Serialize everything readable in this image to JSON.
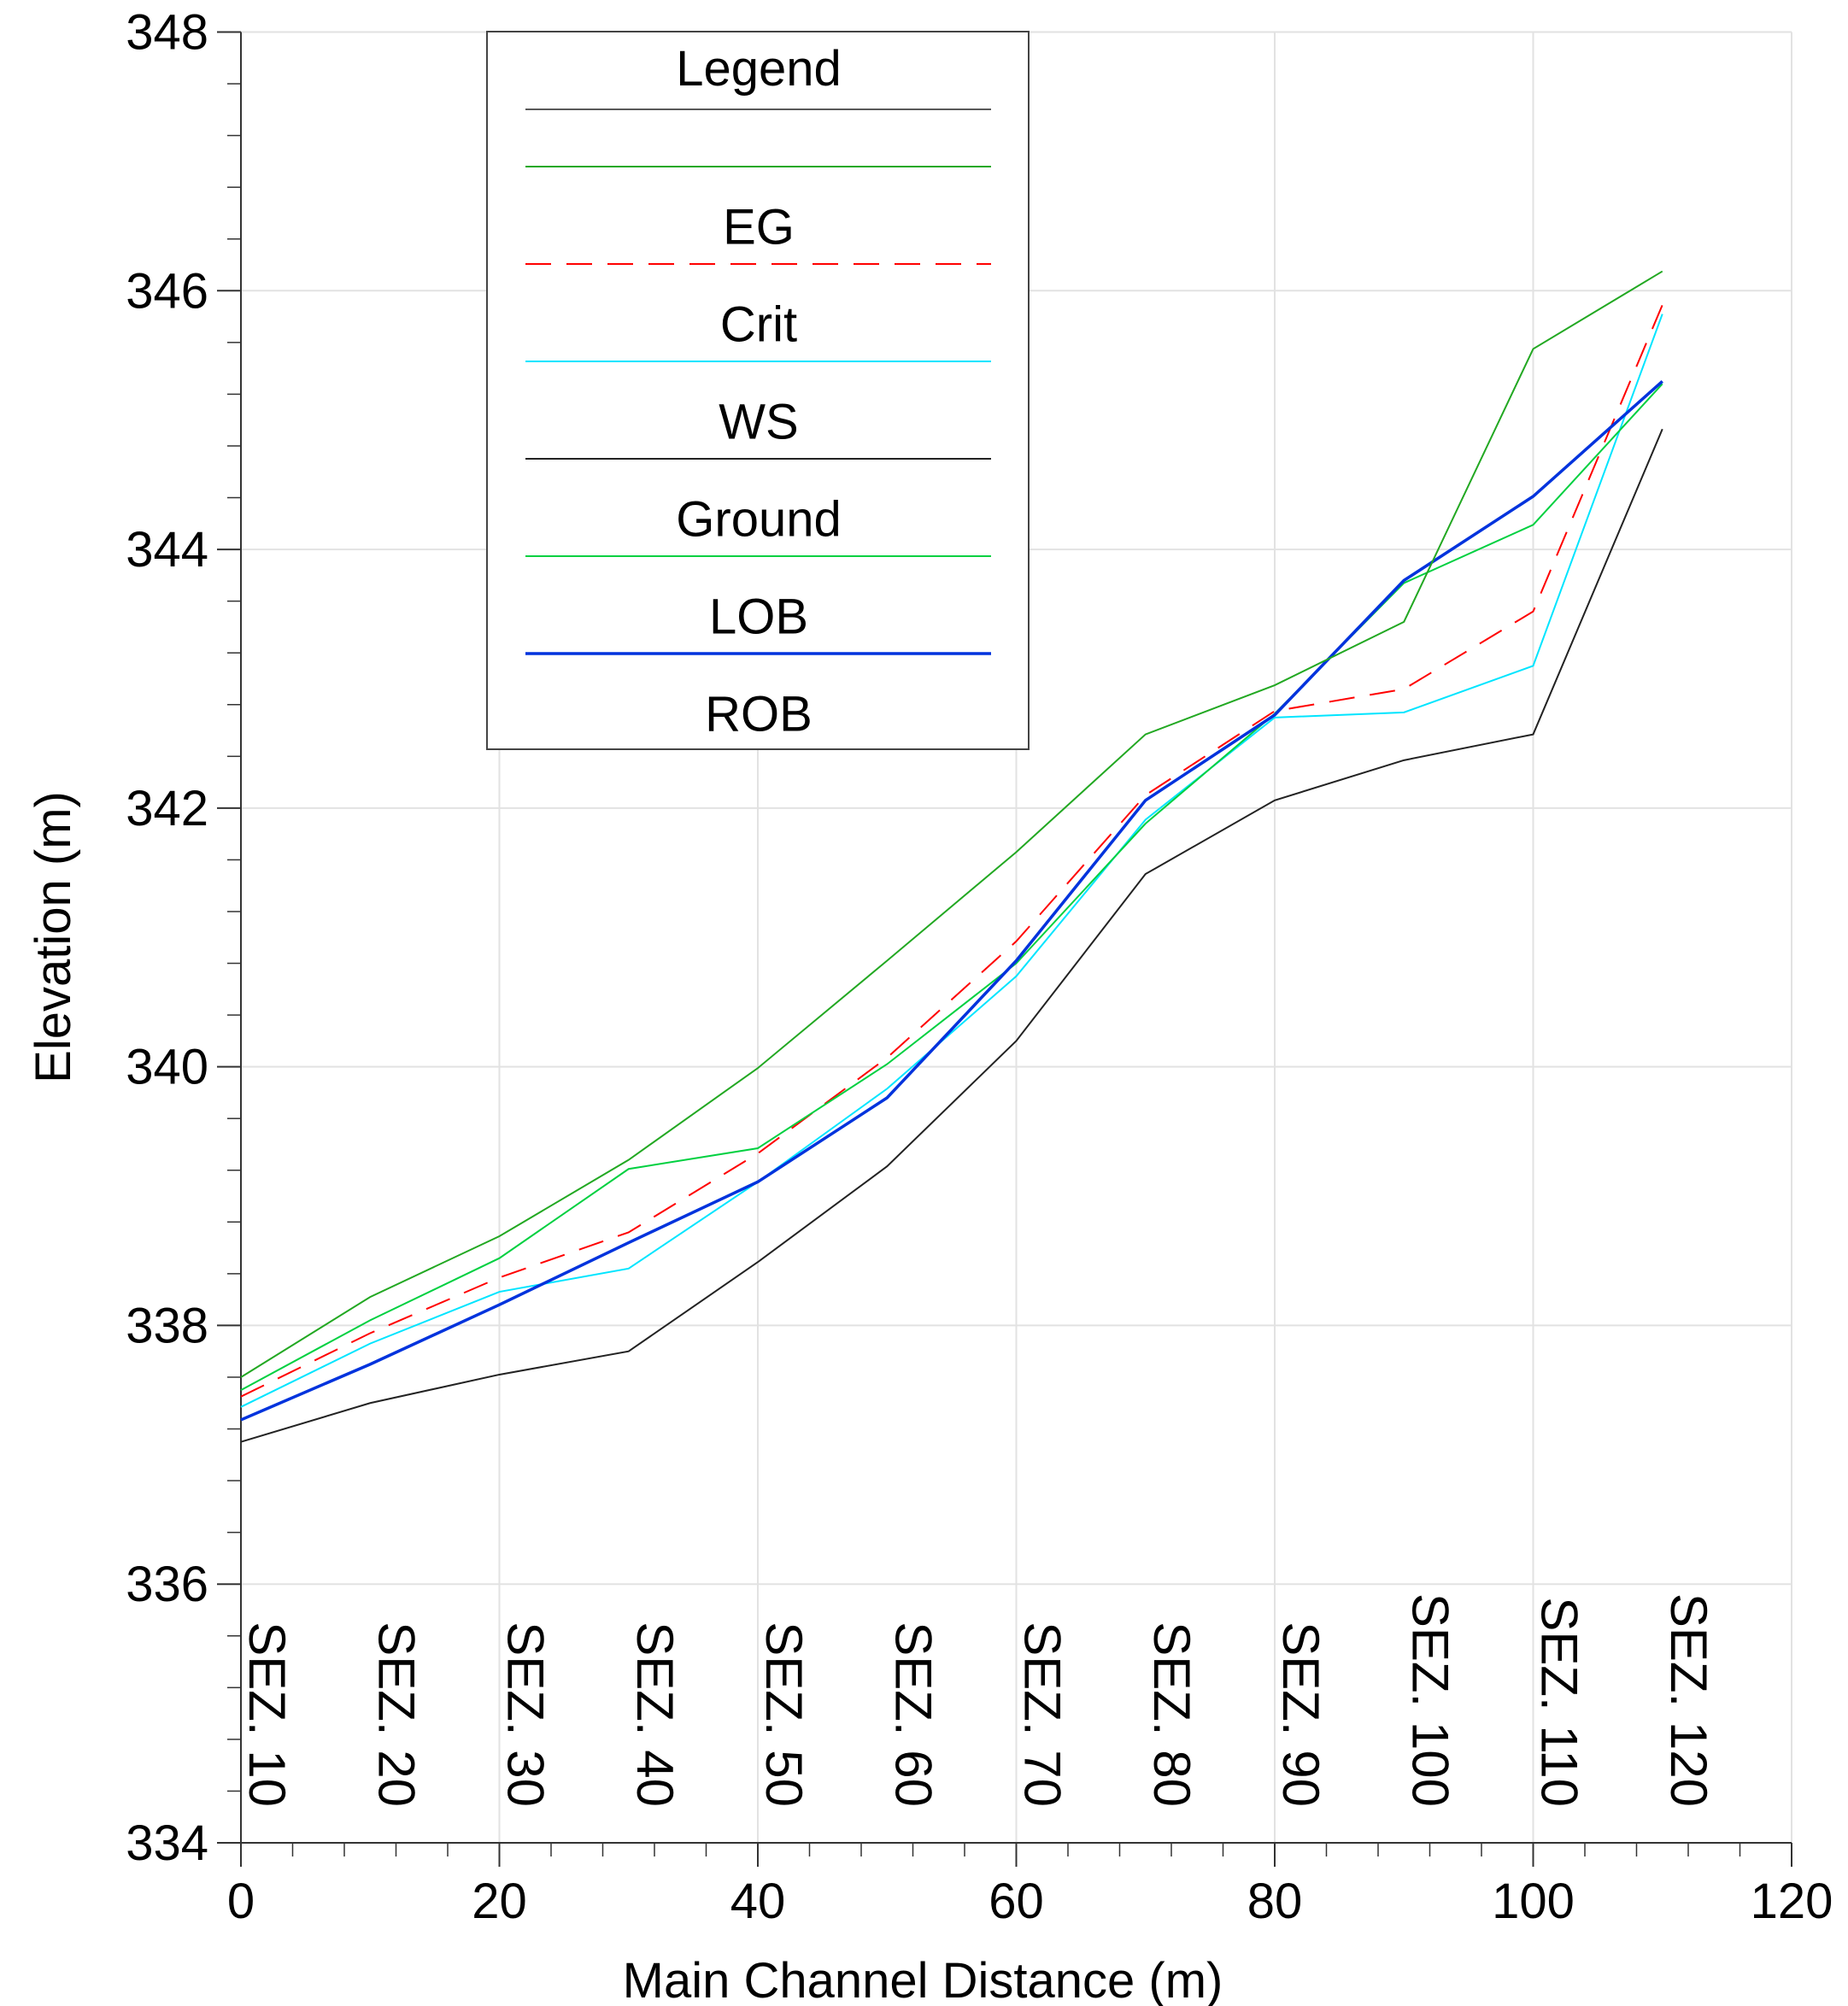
{
  "chart_data": {
    "type": "line",
    "xlabel": "Main Channel Distance (m)",
    "ylabel": "Elevation (m)",
    "legend_title": "Legend",
    "x": [
      0,
      10,
      20,
      30,
      40,
      50,
      60,
      70,
      80,
      90,
      100,
      110
    ],
    "section_labels": [
      "SEZ. 10",
      "SEZ. 20",
      "SEZ. 30",
      "SEZ. 40",
      "SEZ. 50",
      "SEZ. 60",
      "SEZ. 70",
      "SEZ. 80",
      "SEZ. 90",
      "SEZ. 100",
      "SEZ. 110",
      "SEZ. 120"
    ],
    "series": [
      {
        "name": "EG",
        "color": "#ff0000",
        "style": "dashed",
        "values": [
          337.45,
          337.94,
          338.37,
          338.72,
          339.33,
          340.07,
          340.97,
          342.1,
          342.75,
          342.92,
          343.52,
          345.89
        ]
      },
      {
        "name": "Crit",
        "color": "#00e5ff",
        "style": "solid",
        "values": [
          337.37,
          337.86,
          338.26,
          338.44,
          339.11,
          339.83,
          340.7,
          341.91,
          342.7,
          342.74,
          343.1,
          345.82
        ]
      },
      {
        "name": "WS",
        "color": "#222222",
        "style": "solid",
        "values": [
          337.1,
          337.4,
          337.62,
          337.8,
          338.49,
          339.23,
          340.2,
          341.49,
          342.06,
          342.37,
          342.57,
          344.93
        ]
      },
      {
        "name": "Ground",
        "color": "#00d040",
        "style": "solid",
        "values": [
          337.5,
          338.04,
          338.52,
          339.21,
          339.37,
          340.02,
          340.8,
          341.88,
          342.73,
          343.74,
          344.19,
          345.28
        ]
      },
      {
        "name": "LOB",
        "color": "#0033dd",
        "style": "solid",
        "values": [
          337.27,
          337.7,
          338.16,
          338.64,
          339.11,
          339.76,
          340.82,
          342.06,
          342.72,
          343.76,
          344.41,
          345.3
        ]
      },
      {
        "name": "ROB",
        "color": "#22a822",
        "style": "solid",
        "values": [
          337.6,
          338.22,
          338.69,
          339.28,
          339.99,
          340.82,
          341.66,
          342.57,
          342.95,
          343.44,
          345.55,
          346.15
        ]
      }
    ],
    "xlim": [
      0,
      120
    ],
    "xticks": [
      0,
      20,
      40,
      60,
      80,
      100,
      120
    ],
    "ylim": [
      334,
      348
    ],
    "yticks": [
      334,
      336,
      338,
      340,
      342,
      344,
      346,
      348
    ],
    "grid": true
  }
}
